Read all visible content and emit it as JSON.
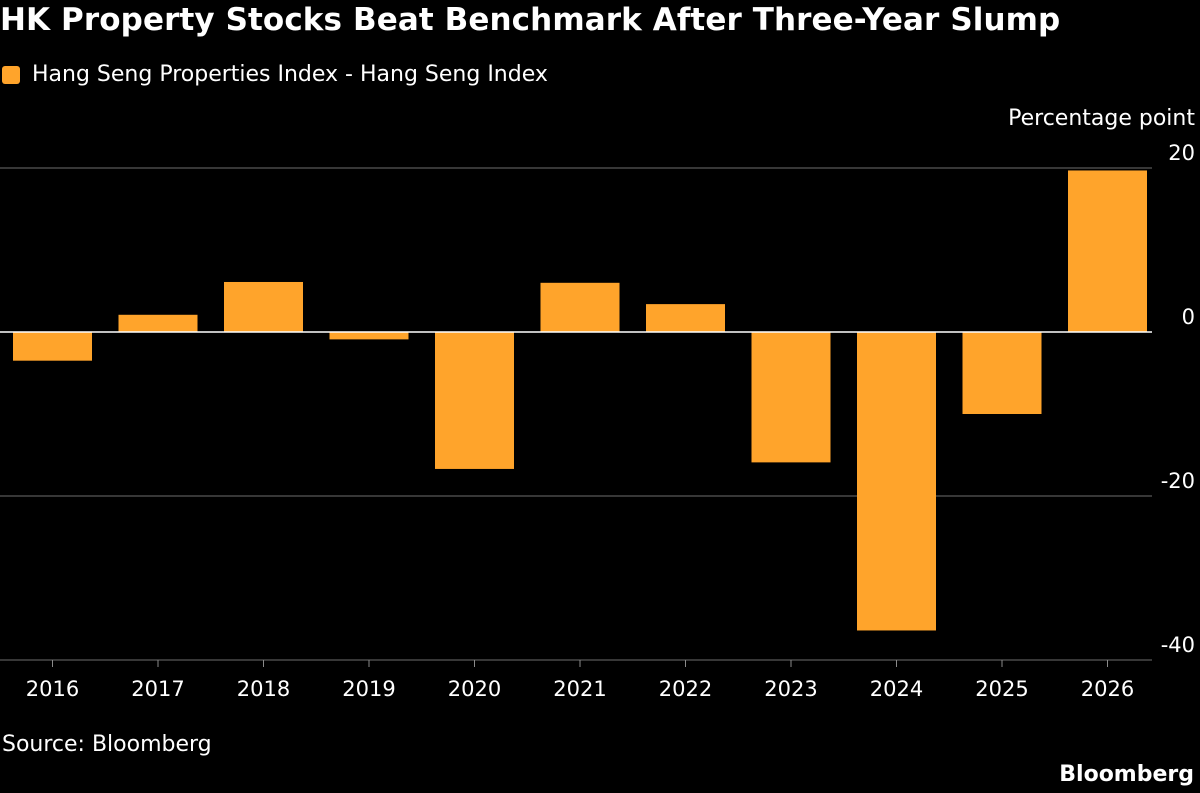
{
  "chart_data": {
    "type": "bar",
    "title": "HK Property Stocks Beat Benchmark After Three-Year Slump",
    "legend": "Hang Seng Properties Index - Hang Seng Index",
    "ylabel": "Percentage point",
    "categories": [
      "2016",
      "2017",
      "2018",
      "2019",
      "2020",
      "2021",
      "2022",
      "2023",
      "2024",
      "2025",
      "2026"
    ],
    "values": [
      -3.5,
      2.1,
      6.1,
      -0.9,
      -16.7,
      6.0,
      3.4,
      -15.9,
      -36.4,
      -10.0,
      19.7
    ],
    "ylim": [
      -40,
      20
    ],
    "yticks": [
      20,
      0,
      -20,
      -40
    ],
    "ytick_labels": [
      "20",
      "0",
      "-20",
      "-40"
    ],
    "grid": true,
    "legend_position": "top-left",
    "bar_color": "#ffa42b",
    "zero_line_color": "#ffffff",
    "grid_color": "#6e6e6e"
  },
  "source": "Source: Bloomberg",
  "brand": "Bloomberg"
}
